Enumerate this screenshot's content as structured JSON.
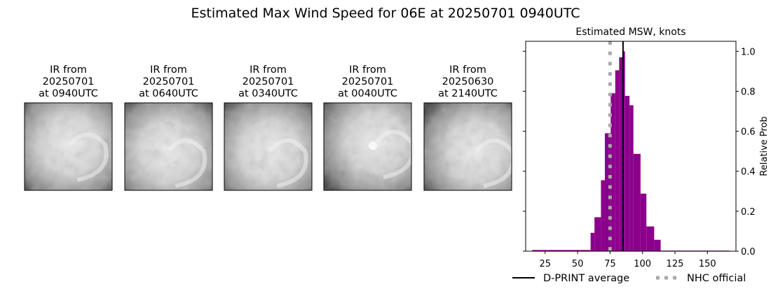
{
  "title": "Estimated Max Wind Speed for 06E at 20250701 0940UTC",
  "panels": [
    {
      "line1": "IR from",
      "line2": "20250701",
      "line3": "at 0940UTC",
      "eye": false
    },
    {
      "line1": "IR from",
      "line2": "20250701",
      "line3": "at 0640UTC",
      "eye": false
    },
    {
      "line1": "IR from",
      "line2": "20250701",
      "line3": "at 0340UTC",
      "eye": false
    },
    {
      "line1": "IR from",
      "line2": "20250701",
      "line3": "at 0040UTC",
      "eye": true
    },
    {
      "line1": "IR from",
      "line2": "20250630",
      "line3": "at 2140UTC",
      "eye": false
    }
  ],
  "chart_data": {
    "type": "bar",
    "title": "Estimated MSW, knots",
    "xlabel": "",
    "ylabel": "Relative Prob",
    "xlim": [
      10,
      172
    ],
    "ylim": [
      0,
      1.05
    ],
    "xticks": [
      "25",
      "50",
      "75",
      "100",
      "125",
      "150"
    ],
    "yticks": [
      "0.0",
      "0.2",
      "0.4",
      "0.6",
      "0.8",
      "1.0"
    ],
    "bin_edges": [
      15,
      60,
      63,
      68,
      71,
      75.5,
      79,
      82,
      84.5,
      86.5,
      90,
      93,
      98.5,
      103,
      109,
      114,
      167
    ],
    "values": [
      0.006,
      0.092,
      0.17,
      0.355,
      0.59,
      0.79,
      0.905,
      0.97,
      1.0,
      0.777,
      0.73,
      0.487,
      0.288,
      0.124,
      0.057,
      0.003
    ],
    "bar_color": "#8b008b",
    "dprint_average": 85,
    "nhc_official": 75,
    "legend": {
      "dprint_label": "D-PRINT average",
      "nhc_label": "NHC official",
      "placement": "bottom"
    },
    "dprint_color": "#000000",
    "nhc_color": "#a9a9a9"
  }
}
